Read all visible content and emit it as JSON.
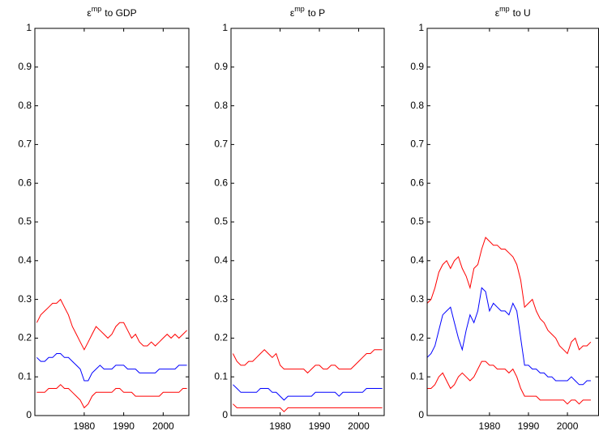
{
  "chart_data": [
    {
      "type": "line",
      "title": {
        "symbol": "ε",
        "superscript": "mp",
        "text": "to GDP"
      },
      "xlim": [
        1967.5,
        2006.5
      ],
      "xticks": [
        1980,
        1990,
        2000
      ],
      "ylim": [
        0,
        1
      ],
      "yticks": [
        0,
        0.1,
        0.2,
        0.3,
        0.4,
        0.5,
        0.6,
        0.7,
        0.8,
        0.9,
        1
      ],
      "x": [
        1968,
        1969,
        1970,
        1971,
        1972,
        1973,
        1974,
        1975,
        1976,
        1977,
        1978,
        1979,
        1980,
        1981,
        1982,
        1983,
        1984,
        1985,
        1986,
        1987,
        1988,
        1989,
        1990,
        1991,
        1992,
        1993,
        1994,
        1995,
        1996,
        1997,
        1998,
        1999,
        2000,
        2001,
        2002,
        2003,
        2004,
        2005,
        2006
      ],
      "series": [
        {
          "color": "#ff0000",
          "values": [
            0.24,
            0.26,
            0.27,
            0.28,
            0.29,
            0.29,
            0.3,
            0.28,
            0.26,
            0.23,
            0.21,
            0.19,
            0.17,
            0.19,
            0.21,
            0.23,
            0.22,
            0.21,
            0.2,
            0.21,
            0.23,
            0.24,
            0.24,
            0.22,
            0.2,
            0.21,
            0.19,
            0.18,
            0.18,
            0.19,
            0.18,
            0.19,
            0.2,
            0.21,
            0.2,
            0.21,
            0.2,
            0.21,
            0.22
          ]
        },
        {
          "color": "#0000ff",
          "values": [
            0.15,
            0.14,
            0.14,
            0.15,
            0.15,
            0.16,
            0.16,
            0.15,
            0.15,
            0.14,
            0.13,
            0.12,
            0.09,
            0.09,
            0.11,
            0.12,
            0.13,
            0.12,
            0.12,
            0.12,
            0.13,
            0.13,
            0.13,
            0.12,
            0.12,
            0.12,
            0.11,
            0.11,
            0.11,
            0.11,
            0.11,
            0.12,
            0.12,
            0.12,
            0.12,
            0.12,
            0.13,
            0.13,
            0.13
          ]
        },
        {
          "color": "#ff0000",
          "values": [
            0.06,
            0.06,
            0.06,
            0.07,
            0.07,
            0.07,
            0.08,
            0.07,
            0.07,
            0.06,
            0.05,
            0.04,
            0.02,
            0.03,
            0.05,
            0.06,
            0.06,
            0.06,
            0.06,
            0.06,
            0.07,
            0.07,
            0.06,
            0.06,
            0.06,
            0.05,
            0.05,
            0.05,
            0.05,
            0.05,
            0.05,
            0.05,
            0.06,
            0.06,
            0.06,
            0.06,
            0.06,
            0.07,
            0.07
          ]
        }
      ]
    },
    {
      "type": "line",
      "title": {
        "symbol": "ε",
        "superscript": "mp",
        "text": "to P"
      },
      "xlim": [
        1967.5,
        2006.5
      ],
      "xticks": [
        1980,
        1990,
        2000
      ],
      "ylim": [
        0,
        1
      ],
      "yticks": [
        0,
        0.1,
        0.2,
        0.3,
        0.4,
        0.5,
        0.6,
        0.7,
        0.8,
        0.9,
        1
      ],
      "x": [
        1968,
        1969,
        1970,
        1971,
        1972,
        1973,
        1974,
        1975,
        1976,
        1977,
        1978,
        1979,
        1980,
        1981,
        1982,
        1983,
        1984,
        1985,
        1986,
        1987,
        1988,
        1989,
        1990,
        1991,
        1992,
        1993,
        1994,
        1995,
        1996,
        1997,
        1998,
        1999,
        2000,
        2001,
        2002,
        2003,
        2004,
        2005,
        2006
      ],
      "series": [
        {
          "color": "#ff0000",
          "values": [
            0.16,
            0.14,
            0.13,
            0.13,
            0.14,
            0.14,
            0.15,
            0.16,
            0.17,
            0.16,
            0.15,
            0.16,
            0.13,
            0.12,
            0.12,
            0.12,
            0.12,
            0.12,
            0.12,
            0.11,
            0.12,
            0.13,
            0.13,
            0.12,
            0.12,
            0.13,
            0.13,
            0.12,
            0.12,
            0.12,
            0.12,
            0.13,
            0.14,
            0.15,
            0.16,
            0.16,
            0.17,
            0.17,
            0.17
          ]
        },
        {
          "color": "#0000ff",
          "values": [
            0.08,
            0.07,
            0.06,
            0.06,
            0.06,
            0.06,
            0.06,
            0.07,
            0.07,
            0.07,
            0.06,
            0.06,
            0.05,
            0.04,
            0.05,
            0.05,
            0.05,
            0.05,
            0.05,
            0.05,
            0.05,
            0.06,
            0.06,
            0.06,
            0.06,
            0.06,
            0.06,
            0.05,
            0.06,
            0.06,
            0.06,
            0.06,
            0.06,
            0.06,
            0.07,
            0.07,
            0.07,
            0.07,
            0.07
          ]
        },
        {
          "color": "#ff0000",
          "values": [
            0.03,
            0.02,
            0.02,
            0.02,
            0.02,
            0.02,
            0.02,
            0.02,
            0.02,
            0.02,
            0.02,
            0.02,
            0.02,
            0.01,
            0.02,
            0.02,
            0.02,
            0.02,
            0.02,
            0.02,
            0.02,
            0.02,
            0.02,
            0.02,
            0.02,
            0.02,
            0.02,
            0.02,
            0.02,
            0.02,
            0.02,
            0.02,
            0.02,
            0.02,
            0.02,
            0.02,
            0.02,
            0.02,
            0.02
          ]
        }
      ]
    },
    {
      "type": "line",
      "title": {
        "symbol": "ε",
        "superscript": "mp",
        "text": "to U"
      },
      "xlim": [
        1964,
        2008
      ],
      "xticks": [
        1980,
        1990,
        2000
      ],
      "ylim": [
        0,
        1
      ],
      "yticks": [
        0,
        0.1,
        0.2,
        0.3,
        0.4,
        0.5,
        0.6,
        0.7,
        0.8,
        0.9,
        1
      ],
      "x": [
        1964,
        1965,
        1966,
        1967,
        1968,
        1969,
        1970,
        1971,
        1972,
        1973,
        1974,
        1975,
        1976,
        1977,
        1978,
        1979,
        1980,
        1981,
        1982,
        1983,
        1984,
        1985,
        1986,
        1987,
        1988,
        1989,
        1990,
        1991,
        1992,
        1993,
        1994,
        1995,
        1996,
        1997,
        1998,
        1999,
        2000,
        2001,
        2002,
        2003,
        2004,
        2005,
        2006
      ],
      "series": [
        {
          "color": "#ff0000",
          "values": [
            0.29,
            0.3,
            0.33,
            0.37,
            0.39,
            0.4,
            0.38,
            0.4,
            0.41,
            0.38,
            0.36,
            0.33,
            0.38,
            0.39,
            0.43,
            0.46,
            0.45,
            0.44,
            0.44,
            0.43,
            0.43,
            0.42,
            0.41,
            0.39,
            0.35,
            0.28,
            0.29,
            0.3,
            0.27,
            0.25,
            0.24,
            0.22,
            0.21,
            0.2,
            0.18,
            0.17,
            0.16,
            0.19,
            0.2,
            0.17,
            0.18,
            0.18,
            0.19
          ]
        },
        {
          "color": "#0000ff",
          "values": [
            0.15,
            0.16,
            0.18,
            0.22,
            0.26,
            0.27,
            0.28,
            0.24,
            0.2,
            0.17,
            0.22,
            0.26,
            0.24,
            0.27,
            0.33,
            0.32,
            0.27,
            0.29,
            0.28,
            0.27,
            0.27,
            0.26,
            0.29,
            0.27,
            0.2,
            0.13,
            0.13,
            0.12,
            0.12,
            0.11,
            0.11,
            0.1,
            0.1,
            0.09,
            0.09,
            0.09,
            0.09,
            0.1,
            0.09,
            0.08,
            0.08,
            0.09,
            0.09
          ]
        },
        {
          "color": "#ff0000",
          "values": [
            0.07,
            0.07,
            0.08,
            0.1,
            0.11,
            0.09,
            0.07,
            0.08,
            0.1,
            0.11,
            0.1,
            0.09,
            0.1,
            0.12,
            0.14,
            0.14,
            0.13,
            0.13,
            0.12,
            0.12,
            0.12,
            0.11,
            0.12,
            0.1,
            0.07,
            0.05,
            0.05,
            0.05,
            0.05,
            0.04,
            0.04,
            0.04,
            0.04,
            0.04,
            0.04,
            0.04,
            0.03,
            0.04,
            0.04,
            0.03,
            0.04,
            0.04,
            0.04
          ]
        }
      ]
    }
  ]
}
